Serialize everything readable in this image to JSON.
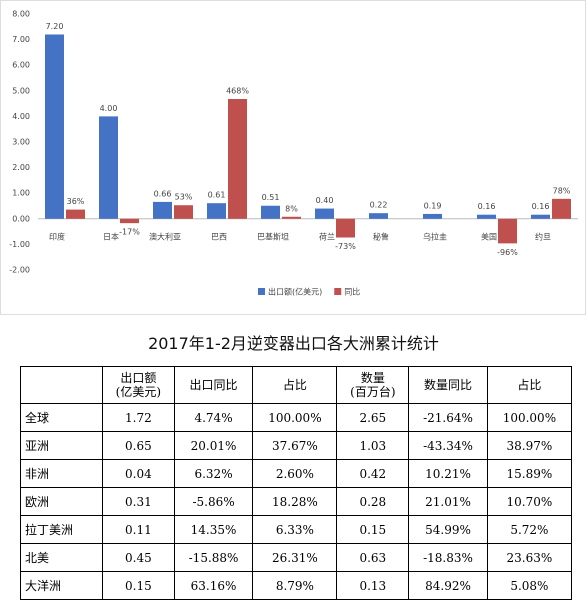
{
  "chart_data": {
    "type": "bar",
    "categories": [
      "印度",
      "日本",
      "澳大利亚",
      "巴西",
      "巴基斯坦",
      "荷兰",
      "秘鲁",
      "乌拉圭",
      "美国",
      "约旦"
    ],
    "series": [
      {
        "name": "出口额(亿美元)",
        "color": "#4472c4",
        "values": [
          7.2,
          4.0,
          0.66,
          0.61,
          0.51,
          0.4,
          0.22,
          0.19,
          0.16,
          0.16
        ],
        "value_labels": [
          "7.20",
          "4.00",
          "0.66",
          "0.61",
          "0.51",
          "0.40",
          "0.22",
          "0.19",
          "0.16",
          "0.16"
        ]
      },
      {
        "name": "同比",
        "color": "#c0504d",
        "values": [
          0.36,
          -0.17,
          0.53,
          4.68,
          0.08,
          -0.73,
          null,
          null,
          -0.96,
          0.78
        ],
        "value_labels": [
          "36%",
          "-17%",
          "53%",
          "468%",
          "8%",
          "-73%",
          null,
          null,
          "-96%",
          "78%"
        ]
      }
    ],
    "ylim": [
      -2,
      8
    ],
    "yticks": [
      {
        "value": -2,
        "label": "-2.00"
      },
      {
        "value": -1,
        "label": "-1.00"
      },
      {
        "value": 0,
        "label": "0.00"
      },
      {
        "value": 1,
        "label": "1.00"
      },
      {
        "value": 2,
        "label": "2.00"
      },
      {
        "value": 3,
        "label": "3.00"
      },
      {
        "value": 4,
        "label": "4.00"
      },
      {
        "value": 5,
        "label": "5.00"
      },
      {
        "value": 6,
        "label": "6.00"
      },
      {
        "value": 7,
        "label": "7.00"
      },
      {
        "value": 8,
        "label": "8.00"
      }
    ],
    "grid": false,
    "legend": "bottom"
  },
  "table": {
    "title": "2017年1-2月逆变器出口各大洲累计统计",
    "header": [
      [
        "出口额",
        "(亿美元)"
      ],
      [
        "出口同比"
      ],
      [
        "占比"
      ],
      [
        "数量",
        "(百万台)"
      ],
      [
        "数量同比"
      ],
      [
        "占比"
      ]
    ],
    "rows": [
      [
        "全球",
        "1.72",
        "4.74%",
        "100.00%",
        "2.65",
        "-21.64%",
        "100.00%"
      ],
      [
        "亚洲",
        "0.65",
        "20.01%",
        "37.67%",
        "1.03",
        "-43.34%",
        "38.97%"
      ],
      [
        "非洲",
        "0.04",
        "6.32%",
        "2.60%",
        "0.42",
        "10.21%",
        "15.89%"
      ],
      [
        "欧洲",
        "0.31",
        "-5.86%",
        "18.28%",
        "0.28",
        "21.01%",
        "10.70%"
      ],
      [
        "拉丁美洲",
        "0.11",
        "14.35%",
        "6.33%",
        "0.15",
        "54.99%",
        "5.72%"
      ],
      [
        "北美",
        "0.45",
        "-15.88%",
        "26.31%",
        "0.63",
        "-18.83%",
        "23.63%"
      ],
      [
        "大洋洲",
        "0.15",
        "63.16%",
        "8.79%",
        "0.13",
        "84.92%",
        "5.08%"
      ]
    ]
  }
}
